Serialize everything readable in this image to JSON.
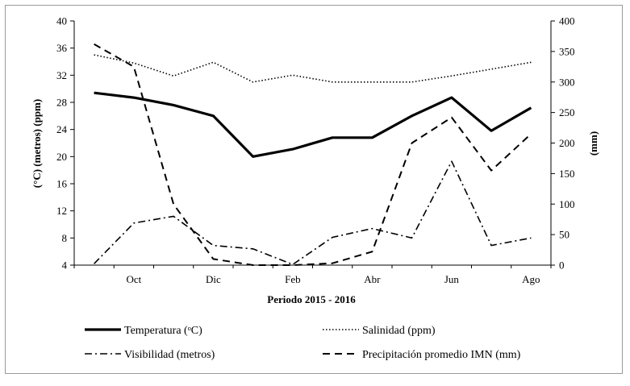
{
  "chart_data": {
    "type": "line",
    "title": "",
    "xlabel": "Periodo 2015 - 2016",
    "ylabel_left": "(°C) (metros) (ppm)",
    "ylabel_right": "(mm)",
    "ylim_left": [
      4,
      40
    ],
    "yticks_left": [
      4,
      8,
      12,
      16,
      20,
      24,
      28,
      32,
      36,
      40
    ],
    "ylim_right": [
      0,
      400
    ],
    "yticks_right": [
      0,
      50,
      100,
      150,
      200,
      250,
      300,
      350,
      400
    ],
    "x_tick_labels": [
      "Oct",
      "Dic",
      "Feb",
      "Abr",
      "Jun",
      "Ago"
    ],
    "series": [
      {
        "name": "Temperatura (ᵒC)",
        "axis": "left",
        "style": "solid",
        "values": [
          29.4,
          28.7,
          27.6,
          26.0,
          20.0,
          21.1,
          22.8,
          22.8,
          26.0,
          28.7,
          23.8,
          27.2
        ]
      },
      {
        "name": "Salinidad (ppm)",
        "axis": "left",
        "style": "dotted",
        "values": [
          35.0,
          33.8,
          31.9,
          33.9,
          31.0,
          32.0,
          31.0,
          31.0,
          31.0,
          31.9,
          32.9,
          33.9
        ]
      },
      {
        "name": "Visibilidad (metros)",
        "axis": "left",
        "style": "dashdot",
        "values": [
          4.2,
          10.2,
          11.2,
          6.9,
          6.4,
          4.1,
          8.1,
          9.4,
          8.0,
          19.3,
          6.9,
          8.0
        ]
      },
      {
        "name": "Precipitación promedio IMN (mm)",
        "axis": "right",
        "style": "dashed",
        "values": [
          362,
          325,
          100,
          10,
          0,
          0,
          3,
          22,
          200,
          242,
          155,
          215
        ]
      }
    ]
  }
}
